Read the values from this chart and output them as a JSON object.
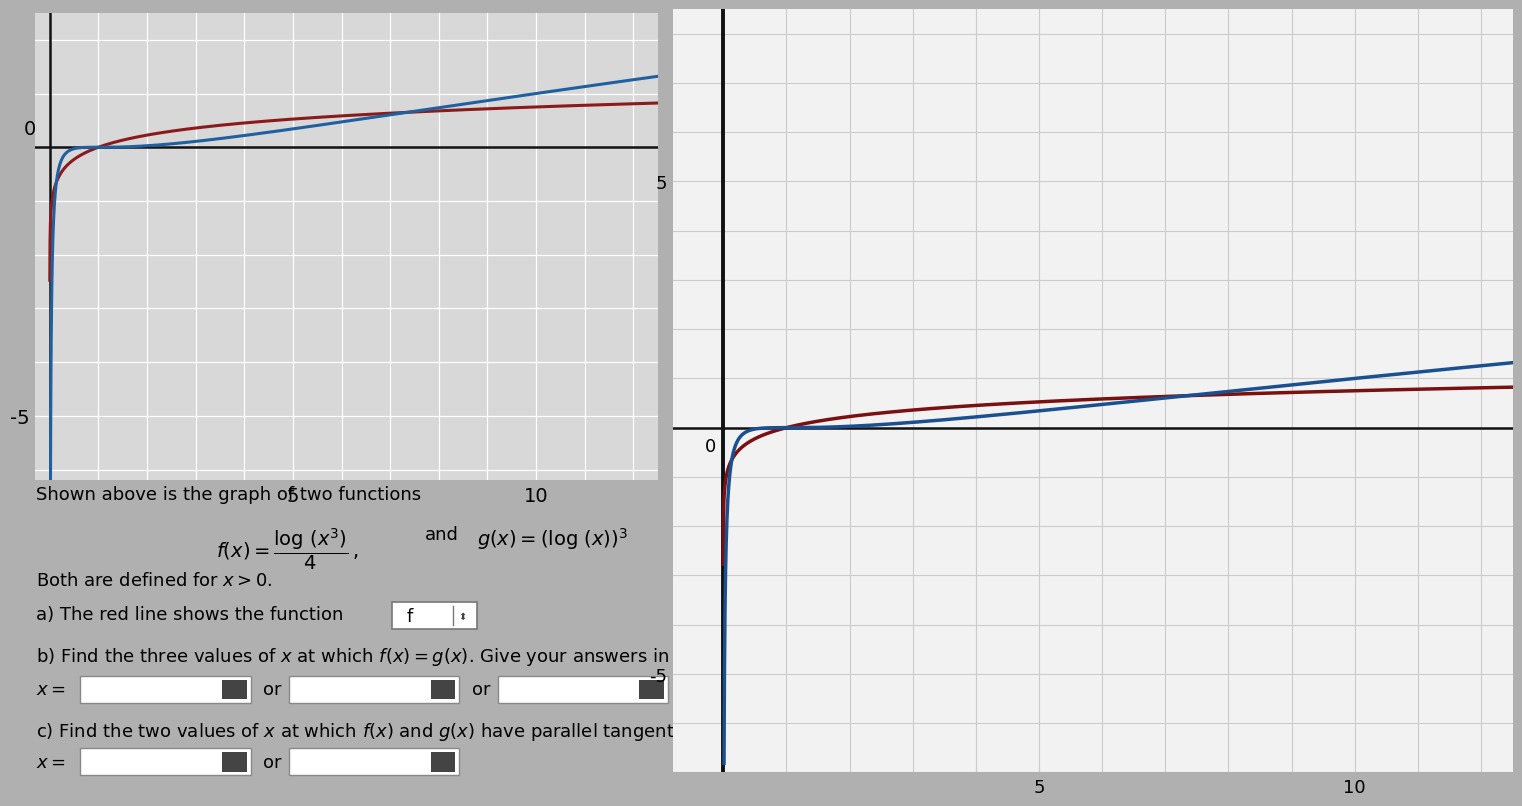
{
  "left_graph": {
    "xlim": [
      -0.3,
      12.5
    ],
    "ylim": [
      -6.2,
      2.5
    ],
    "xticks_major": [
      5,
      10
    ],
    "yticks_major": [
      -5
    ],
    "bg_color": "#d8d8d8",
    "grid_color": "#ffffff",
    "axis_color": "#111111",
    "f_color": "#8B1A1A",
    "g_color": "#2060A0",
    "tick_label_size": 14
  },
  "right_graph": {
    "xlim": [
      -0.8,
      12.5
    ],
    "ylim": [
      -7.0,
      8.5
    ],
    "xticks_major": [
      5,
      10
    ],
    "yticks_major": [
      -5,
      5
    ],
    "bg_color": "#f2f2f2",
    "grid_color": "#cccccc",
    "axis_color": "#111111",
    "f_color": "#7B1010",
    "g_color": "#1A5090",
    "tick_label_size": 13
  },
  "page_bg": "#b0b0b0",
  "text_bg": "#b8b8b8",
  "shown_above": "Shown above is the graph of two functions",
  "both_defined": "Both are defined for $x > 0$.",
  "part_a_text": "a) The red line shows the function",
  "part_b_text": "b) Find the three values of $x$ at which $f(x) = g(x)$. Give your answers in order from smallest to larges",
  "part_c_text": "c) Find the two values of $x$ at which $f(x)$ and $g(x)$ have parallel tangent lines. Give your answers in order from smallest to largest.",
  "x_eq": "$x =$",
  "or_text": "or",
  "font_size_main": 13,
  "font_size_formula": 14
}
